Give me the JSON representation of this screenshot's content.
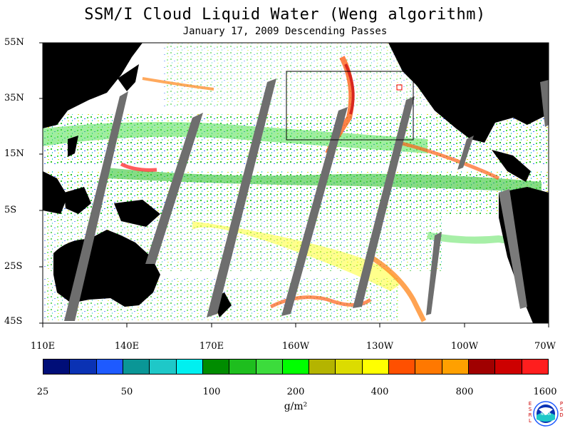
{
  "title": "SSM/I Cloud Liquid Water (Weng algorithm)",
  "subtitle": "January 17, 2009  Descending Passes",
  "lat_labels": [
    "55N",
    "35N",
    "15N",
    "5S",
    "25S",
    "45S"
  ],
  "lon_labels": [
    "110E",
    "140E",
    "170E",
    "160W",
    "130W",
    "100W",
    "70W"
  ],
  "colorbar": {
    "colors": [
      "#000e78",
      "#0a32b4",
      "#1e5aff",
      "#0a9696",
      "#1ec8c8",
      "#00f0f0",
      "#008c00",
      "#1ebe1e",
      "#3cdc3c",
      "#00ff00",
      "#b4b400",
      "#dcdc00",
      "#ffff00",
      "#ff5000",
      "#ff7800",
      "#ffa000",
      "#a00000",
      "#cd0000",
      "#ff1e1e"
    ],
    "tick_labels": [
      "25",
      "50",
      "100",
      "200",
      "400",
      "800",
      "1600"
    ],
    "units": "g/m²"
  },
  "logo": {
    "left_text": [
      "E",
      "S",
      "R",
      "L"
    ],
    "right_text": [
      "P",
      "S",
      "D"
    ],
    "center_text": "NOAA"
  }
}
